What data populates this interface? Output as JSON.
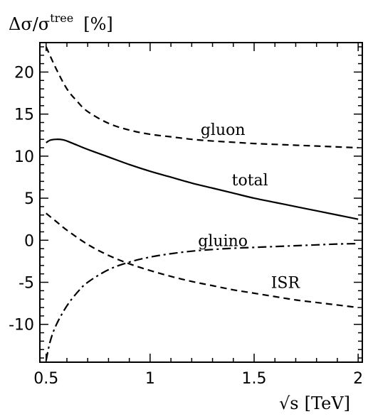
{
  "chart_data": {
    "type": "line",
    "ylabel": {
      "main": "Δσ/σ",
      "sup": "tree",
      "unit": "[%]"
    },
    "xlabel": {
      "symbol": "√s",
      "unit": "[TeV]"
    },
    "xlim": [
      0.47,
      2.02
    ],
    "ylim": [
      -14.5,
      23.5
    ],
    "xticks": [
      {
        "value": 0.5,
        "label": "0.5"
      },
      {
        "value": 1,
        "label": "1"
      },
      {
        "value": 1.5,
        "label": "1.5"
      },
      {
        "value": 2,
        "label": "2"
      }
    ],
    "yticks": [
      {
        "value": 20,
        "label": "20"
      },
      {
        "value": 15,
        "label": "15"
      },
      {
        "value": 10,
        "label": "10"
      },
      {
        "value": 5,
        "label": "5"
      },
      {
        "value": 0,
        "label": "0"
      },
      {
        "value": -5,
        "label": "-5"
      },
      {
        "value": -10,
        "label": "-10"
      }
    ],
    "grid": false,
    "series": [
      {
        "name": "gluon",
        "style": "dashed",
        "color": "#000000",
        "x": [
          0.5,
          0.55,
          0.6,
          0.65,
          0.7,
          0.8,
          0.9,
          1.0,
          1.1,
          1.2,
          1.3,
          1.4,
          1.5,
          1.6,
          1.7,
          1.8,
          1.9,
          2.0
        ],
        "y": [
          23.0,
          20.3,
          18.0,
          16.5,
          15.3,
          13.9,
          13.1,
          12.6,
          12.3,
          12.0,
          11.8,
          11.65,
          11.5,
          11.4,
          11.3,
          11.2,
          11.1,
          11.0
        ]
      },
      {
        "name": "total",
        "style": "solid",
        "color": "#000000",
        "x": [
          0.5,
          0.52,
          0.55,
          0.58,
          0.6,
          0.65,
          0.7,
          0.8,
          0.9,
          1.0,
          1.1,
          1.2,
          1.3,
          1.4,
          1.5,
          1.6,
          1.7,
          1.8,
          1.9,
          2.0
        ],
        "y": [
          11.6,
          11.9,
          12.0,
          11.95,
          11.8,
          11.3,
          10.8,
          9.9,
          9.0,
          8.2,
          7.5,
          6.8,
          6.2,
          5.6,
          5.0,
          4.5,
          4.0,
          3.5,
          3.0,
          2.5
        ]
      },
      {
        "name": "gluino",
        "style": "dashdot",
        "color": "#000000",
        "x": [
          0.5,
          0.52,
          0.55,
          0.6,
          0.65,
          0.7,
          0.8,
          0.9,
          1.0,
          1.1,
          1.2,
          1.3,
          1.4,
          1.5,
          1.6,
          1.7,
          1.8,
          1.9,
          2.0
        ],
        "y": [
          -14.3,
          -12.0,
          -10.0,
          -7.8,
          -6.2,
          -5.0,
          -3.5,
          -2.6,
          -2.0,
          -1.6,
          -1.3,
          -1.1,
          -0.95,
          -0.85,
          -0.75,
          -0.65,
          -0.55,
          -0.45,
          -0.4
        ]
      },
      {
        "name": "ISR",
        "style": "dashed",
        "color": "#000000",
        "x": [
          0.5,
          0.55,
          0.6,
          0.7,
          0.8,
          0.9,
          1.0,
          1.1,
          1.2,
          1.3,
          1.4,
          1.5,
          1.6,
          1.7,
          1.8,
          1.9,
          2.0
        ],
        "y": [
          3.2,
          2.2,
          1.2,
          -0.5,
          -1.8,
          -2.8,
          -3.6,
          -4.3,
          -4.9,
          -5.4,
          -5.9,
          -6.3,
          -6.7,
          -7.1,
          -7.4,
          -7.7,
          -8.0
        ]
      }
    ],
    "annotations": [
      {
        "text": "gluon",
        "x": 1.35,
        "y": 13.2
      },
      {
        "text": "total",
        "x": 1.48,
        "y": 7.2
      },
      {
        "text": "gluino",
        "x": 1.35,
        "y": 0.0
      },
      {
        "text": "ISR",
        "x": 1.65,
        "y": -5.0
      }
    ]
  }
}
